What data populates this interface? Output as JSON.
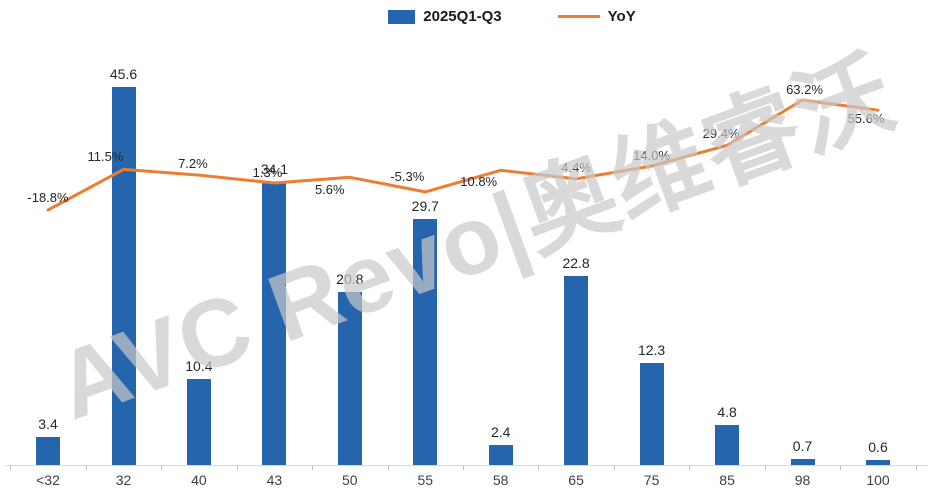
{
  "watermark": "AVC Revo|奥维睿沃",
  "legend": {
    "bar_label": "2025Q1-Q3",
    "line_label": "YoY"
  },
  "colors": {
    "bar": "#2565AE",
    "line": "#ED7D31",
    "axis": "#D9D9D9",
    "text": "#262626"
  },
  "chart_data": {
    "type": "bar",
    "title": "",
    "xlabel": "",
    "ylabel": "",
    "grid": false,
    "legend_position": "top",
    "categories": [
      "<32",
      "32",
      "40",
      "43",
      "50",
      "55",
      "58",
      "65",
      "75",
      "85",
      "98",
      "100"
    ],
    "series": [
      {
        "name": "2025Q1-Q3",
        "type": "bar",
        "color": "#2565AE",
        "values": [
          3.4,
          45.6,
          10.4,
          34.1,
          20.8,
          29.7,
          2.4,
          22.8,
          12.3,
          4.8,
          0.7,
          0.6
        ],
        "labels": [
          "3.4",
          "45.6",
          "10.4",
          "34.1",
          "20.8",
          "29.7",
          "2.4",
          "22.8",
          "12.3",
          "4.8",
          "0.7",
          "0.6"
        ]
      },
      {
        "name": "YoY",
        "type": "line",
        "color": "#ED7D31",
        "unit": "%",
        "values": [
          -18.8,
          11.5,
          7.2,
          1.3,
          5.6,
          -5.3,
          10.8,
          4.4,
          14.0,
          29.4,
          63.2,
          55.6
        ],
        "labels": [
          "-18.8%",
          "11.5%",
          "7.2%",
          "1.3%",
          "5.6%",
          "-5.3%",
          "10.8%",
          "4.4%",
          "14.0%",
          "29.4%",
          "63.2%",
          "55.6%"
        ]
      }
    ],
    "bar_axis_range": [
      0,
      50
    ],
    "line_axis_range": [
      -40,
      90
    ]
  }
}
